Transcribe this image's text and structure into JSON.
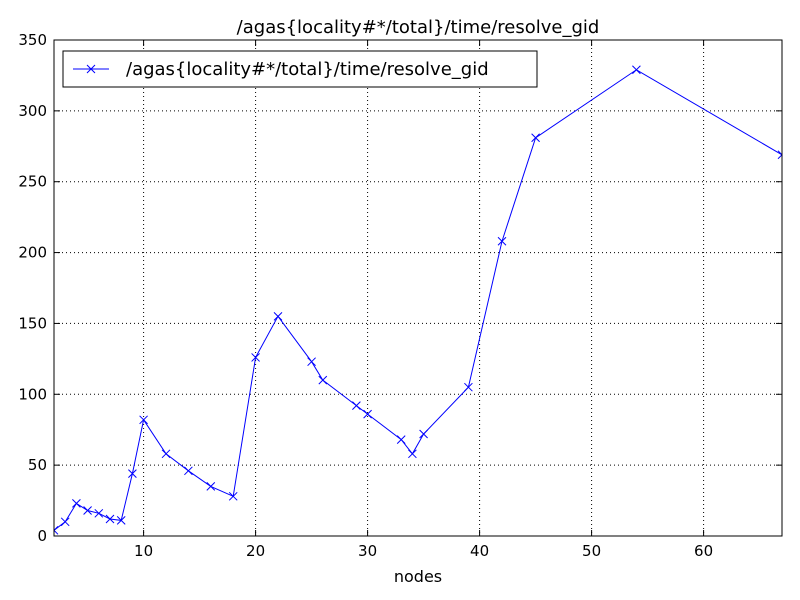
{
  "chart_data": {
    "type": "line",
    "title": "/agas{locality#*/total}/time/resolve_gid",
    "xlabel": "nodes",
    "ylabel": "",
    "xlim": [
      2,
      67
    ],
    "ylim": [
      0,
      350
    ],
    "xticks": [
      10,
      20,
      30,
      40,
      50,
      60
    ],
    "yticks": [
      0,
      50,
      100,
      150,
      200,
      250,
      300,
      350
    ],
    "grid": true,
    "legend_position": "top-left",
    "series": [
      {
        "name": "/agas{locality#*/total}/time/resolve_gid",
        "color": "#0000ff",
        "marker": "x",
        "x": [
          2,
          3,
          4,
          5,
          6,
          7,
          8,
          9,
          10,
          12,
          14,
          16,
          18,
          20,
          22,
          25,
          26,
          29,
          30,
          33,
          34,
          35,
          39,
          42,
          45,
          54,
          67
        ],
        "y": [
          4,
          10,
          23,
          18,
          16,
          12,
          11,
          44,
          82,
          58,
          46,
          35,
          28,
          126,
          155,
          123,
          110,
          92,
          86,
          68,
          58,
          72,
          105,
          208,
          281,
          329,
          269
        ]
      }
    ]
  }
}
